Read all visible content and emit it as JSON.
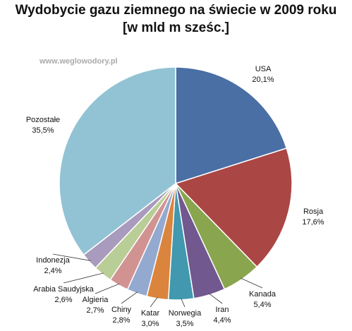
{
  "chart_data": {
    "type": "pie",
    "title_line1": "Wydobycie gazu ziemnego na świecie w 2009 roku",
    "title_line2": "[w mld m sześc.]",
    "watermark": "www.weglowodory.pl",
    "slices": [
      {
        "name": "USA",
        "value": 20.1,
        "label": "20,1%",
        "color": "#4a6fa5"
      },
      {
        "name": "Rosja",
        "value": 17.6,
        "label": "17,6%",
        "color": "#aa4644"
      },
      {
        "name": "Kanada",
        "value": 5.4,
        "label": "5,4%",
        "color": "#89a54e"
      },
      {
        "name": "Iran",
        "value": 4.4,
        "label": "4,4%",
        "color": "#71588f"
      },
      {
        "name": "Norwegia",
        "value": 3.5,
        "label": "3,5%",
        "color": "#4198af"
      },
      {
        "name": "Katar",
        "value": 3.0,
        "label": "3,0%",
        "color": "#db843d"
      },
      {
        "name": "Chiny",
        "value": 2.8,
        "label": "2,8%",
        "color": "#93a9cf"
      },
      {
        "name": "Algieria",
        "value": 2.7,
        "label": "2,7%",
        "color": "#d19392"
      },
      {
        "name": "Arabia Saudyjska",
        "value": 2.6,
        "label": "2,6%",
        "color": "#b9cd96"
      },
      {
        "name": "Indonezja",
        "value": 2.4,
        "label": "2,4%",
        "color": "#a99bbd"
      },
      {
        "name": "Pozostałe",
        "value": 35.5,
        "label": "35,5%",
        "color": "#92c3d4"
      }
    ]
  }
}
